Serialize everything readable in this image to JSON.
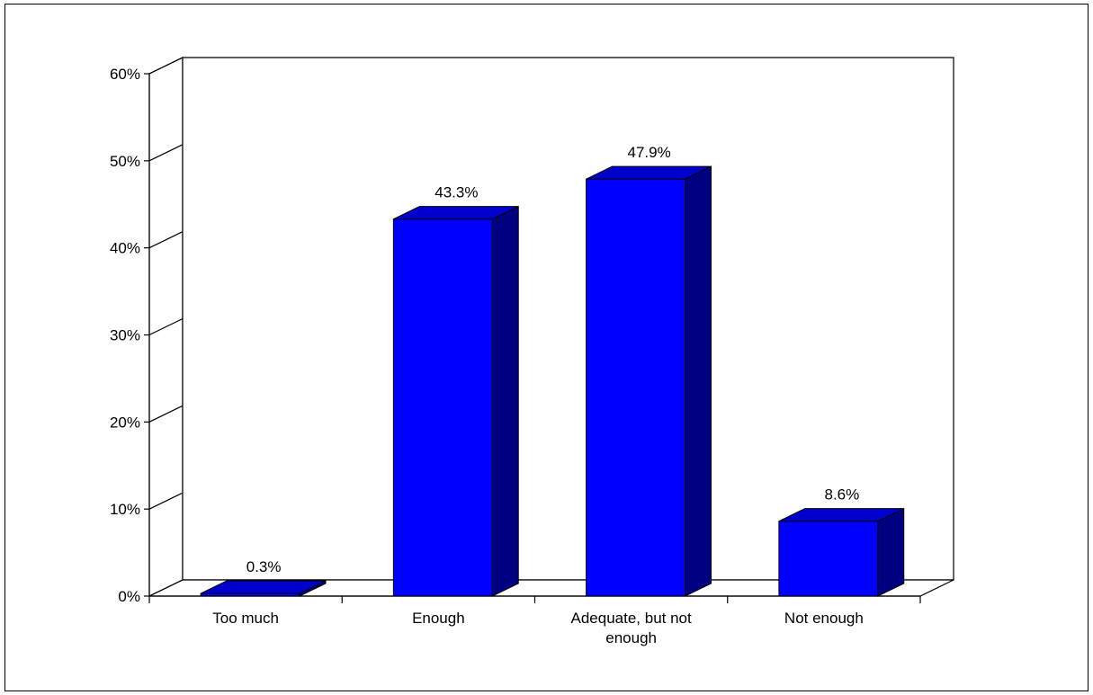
{
  "chart_data": {
    "type": "bar",
    "categories": [
      [
        "Too much"
      ],
      [
        "Enough"
      ],
      [
        "Adequate, but not",
        "enough"
      ],
      [
        "Not enough"
      ]
    ],
    "values": [
      0.3,
      43.3,
      47.9,
      8.6
    ],
    "value_labels": [
      "0.3%",
      "43.3%",
      "47.9%",
      "8.6%"
    ],
    "ylim": [
      0,
      60
    ],
    "yticks": [
      0,
      10,
      20,
      30,
      40,
      50,
      60
    ],
    "ytick_labels": [
      "0%",
      "10%",
      "20%",
      "30%",
      "40%",
      "50%",
      "60%"
    ],
    "title": "",
    "xlabel": "",
    "ylabel": "",
    "grid": false,
    "legend": "none",
    "style": "3d-bar",
    "colors": {
      "bar_front": "#0000ff",
      "bar_top": "#0000cc",
      "bar_side": "#000080",
      "floor": "#ffffff",
      "axis": "#000000"
    }
  }
}
